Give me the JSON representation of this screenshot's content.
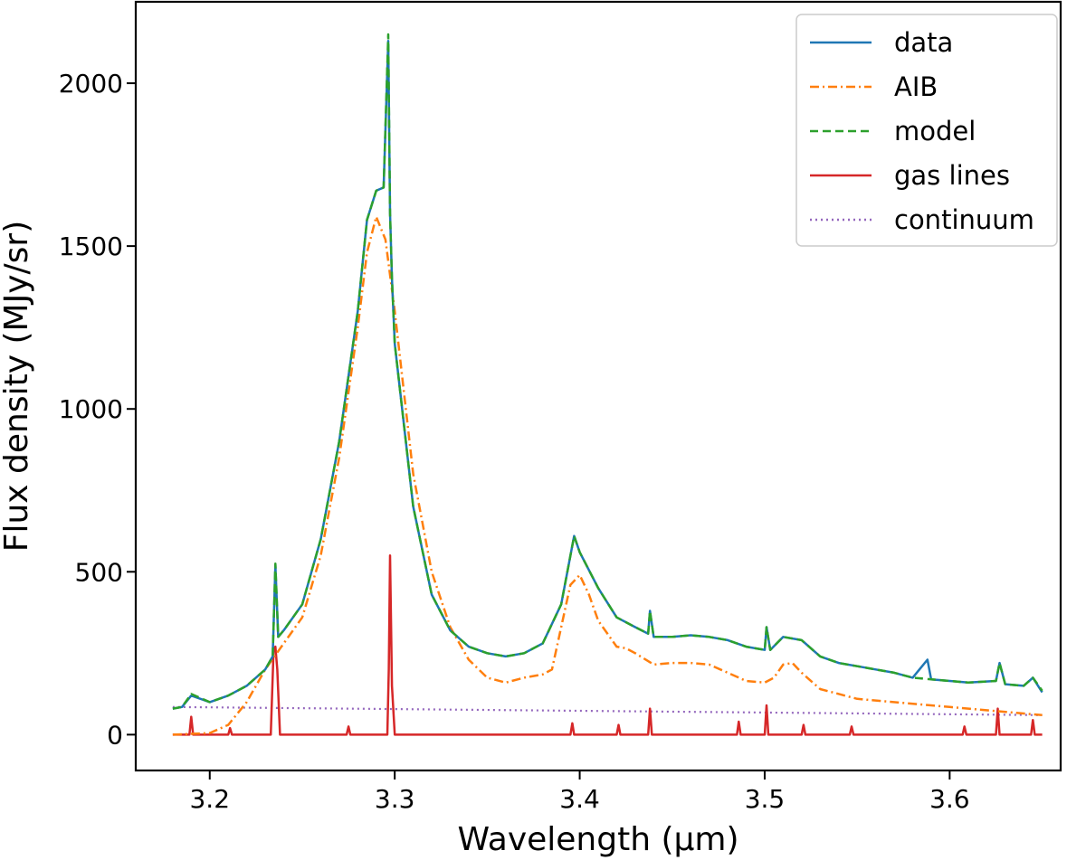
{
  "chart_data": {
    "type": "line",
    "xlabel": "Wavelength (μm)",
    "ylabel": "Flux density (MJy/sr)",
    "xlim": [
      3.16,
      3.66
    ],
    "ylim": [
      -110,
      2250
    ],
    "x_ticks": [
      "3.2",
      "3.3",
      "3.4",
      "3.5",
      "3.6"
    ],
    "y_ticks": [
      "0",
      "500",
      "1000",
      "1500",
      "2000"
    ],
    "legend_position": "top-right",
    "grid": false,
    "series": [
      {
        "name": "data",
        "color": "#1f77b4",
        "style": "solid",
        "x": [
          3.18,
          3.185,
          3.19,
          3.2,
          3.21,
          3.22,
          3.23,
          3.234,
          3.2355,
          3.237,
          3.24,
          3.25,
          3.26,
          3.27,
          3.28,
          3.285,
          3.29,
          3.294,
          3.2965,
          3.2975,
          3.2985,
          3.3,
          3.305,
          3.31,
          3.32,
          3.33,
          3.34,
          3.35,
          3.36,
          3.37,
          3.38,
          3.39,
          3.397,
          3.4,
          3.41,
          3.42,
          3.43,
          3.437,
          3.438,
          3.44,
          3.45,
          3.46,
          3.47,
          3.48,
          3.49,
          3.5,
          3.501,
          3.503,
          3.51,
          3.52,
          3.53,
          3.54,
          3.55,
          3.56,
          3.57,
          3.58,
          3.588,
          3.59,
          3.6,
          3.61,
          3.625,
          3.627,
          3.63,
          3.64,
          3.645,
          3.65
        ],
        "y": [
          80,
          85,
          120,
          100,
          120,
          150,
          200,
          240,
          520,
          300,
          320,
          400,
          600,
          900,
          1300,
          1580,
          1670,
          1680,
          2130,
          1600,
          1400,
          1200,
          950,
          700,
          430,
          320,
          270,
          250,
          240,
          250,
          280,
          400,
          610,
          560,
          450,
          360,
          330,
          310,
          380,
          300,
          300,
          305,
          300,
          290,
          270,
          260,
          330,
          260,
          300,
          290,
          240,
          220,
          210,
          200,
          190,
          175,
          230,
          170,
          165,
          160,
          165,
          220,
          155,
          150,
          175,
          130
        ]
      },
      {
        "name": "AIB",
        "color": "#ff7f0e",
        "style": "dashdot",
        "x": [
          3.18,
          3.2,
          3.21,
          3.22,
          3.23,
          3.24,
          3.25,
          3.26,
          3.27,
          3.28,
          3.285,
          3.29,
          3.295,
          3.3,
          3.305,
          3.31,
          3.32,
          3.33,
          3.34,
          3.35,
          3.36,
          3.37,
          3.38,
          3.385,
          3.39,
          3.395,
          3.4,
          3.405,
          3.41,
          3.42,
          3.425,
          3.43,
          3.44,
          3.45,
          3.46,
          3.47,
          3.48,
          3.49,
          3.5,
          3.505,
          3.51,
          3.515,
          3.52,
          3.53,
          3.55,
          3.6,
          3.65
        ],
        "y": [
          0,
          5,
          30,
          100,
          200,
          280,
          360,
          550,
          850,
          1250,
          1480,
          1590,
          1520,
          1300,
          1050,
          800,
          500,
          330,
          230,
          175,
          160,
          175,
          185,
          200,
          330,
          460,
          490,
          430,
          350,
          270,
          265,
          250,
          215,
          220,
          220,
          215,
          190,
          165,
          160,
          175,
          215,
          220,
          190,
          140,
          110,
          85,
          60
        ]
      },
      {
        "name": "model",
        "color": "#2ca02c",
        "style": "dashed",
        "x": [
          3.18,
          3.185,
          3.19,
          3.2,
          3.21,
          3.22,
          3.23,
          3.234,
          3.2355,
          3.237,
          3.24,
          3.25,
          3.26,
          3.27,
          3.28,
          3.285,
          3.29,
          3.294,
          3.2965,
          3.2975,
          3.2985,
          3.3,
          3.305,
          3.31,
          3.32,
          3.33,
          3.34,
          3.35,
          3.36,
          3.37,
          3.38,
          3.39,
          3.397,
          3.4,
          3.41,
          3.42,
          3.43,
          3.437,
          3.438,
          3.44,
          3.45,
          3.46,
          3.47,
          3.48,
          3.49,
          3.5,
          3.501,
          3.503,
          3.51,
          3.52,
          3.53,
          3.54,
          3.55,
          3.56,
          3.57,
          3.58,
          3.59,
          3.6,
          3.61,
          3.625,
          3.627,
          3.63,
          3.64,
          3.645,
          3.65
        ],
        "y": [
          80,
          85,
          125,
          100,
          120,
          150,
          200,
          240,
          525,
          300,
          320,
          400,
          600,
          900,
          1300,
          1580,
          1670,
          1680,
          2150,
          1600,
          1400,
          1200,
          950,
          700,
          430,
          320,
          270,
          250,
          240,
          250,
          280,
          400,
          610,
          560,
          450,
          360,
          330,
          310,
          380,
          300,
          300,
          305,
          300,
          290,
          270,
          260,
          330,
          260,
          300,
          290,
          240,
          220,
          210,
          200,
          190,
          175,
          170,
          165,
          160,
          165,
          220,
          155,
          150,
          175,
          135
        ]
      },
      {
        "name": "gas lines",
        "color": "#d62728",
        "style": "solid",
        "x": [
          3.18,
          3.189,
          3.19,
          3.191,
          3.21,
          3.211,
          3.212,
          3.233,
          3.2345,
          3.2355,
          3.2365,
          3.238,
          3.274,
          3.275,
          3.276,
          3.296,
          3.2968,
          3.2975,
          3.2985,
          3.3,
          3.395,
          3.396,
          3.397,
          3.42,
          3.421,
          3.422,
          3.437,
          3.438,
          3.439,
          3.48,
          3.485,
          3.486,
          3.487,
          3.5,
          3.501,
          3.502,
          3.52,
          3.521,
          3.522,
          3.546,
          3.547,
          3.548,
          3.607,
          3.608,
          3.609,
          3.625,
          3.626,
          3.627,
          3.644,
          3.645,
          3.646,
          3.65
        ],
        "y": [
          0,
          0,
          55,
          0,
          0,
          20,
          0,
          0,
          260,
          270,
          200,
          0,
          0,
          25,
          0,
          0,
          200,
          550,
          150,
          0,
          0,
          35,
          0,
          0,
          30,
          0,
          0,
          80,
          0,
          0,
          0,
          40,
          0,
          0,
          90,
          0,
          0,
          30,
          0,
          0,
          25,
          0,
          0,
          25,
          0,
          0,
          80,
          0,
          0,
          45,
          0,
          0
        ]
      },
      {
        "name": "continuum",
        "color": "#9467bd",
        "style": "dotted",
        "x": [
          3.18,
          3.65
        ],
        "y": [
          85,
          60
        ]
      }
    ]
  }
}
